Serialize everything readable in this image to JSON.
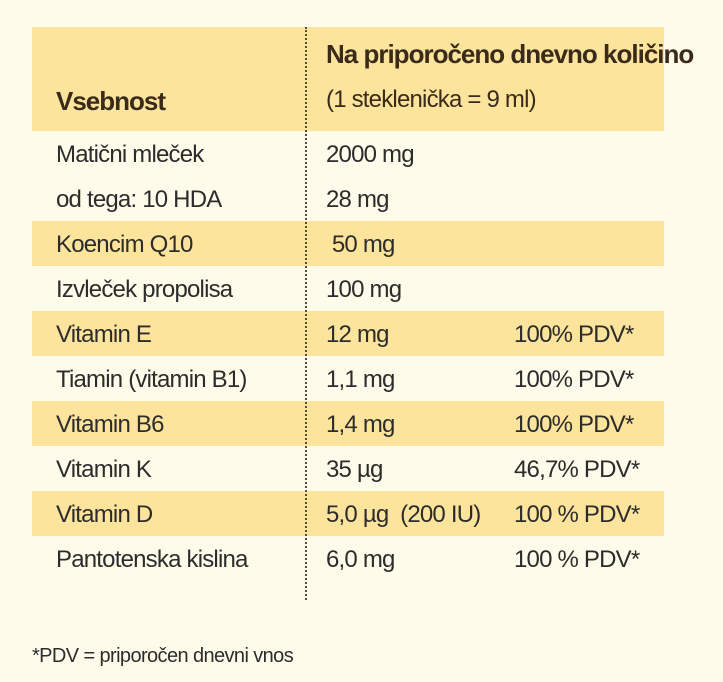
{
  "header": {
    "col1": "Vsebnost",
    "col2_title": "Na priporočeno dnevno količino",
    "col2_subtitle": "(1 steklenička = 9 ml)"
  },
  "rows": [
    {
      "name": "Matični mleček",
      "amount": "2000 mg",
      "pdv": ""
    },
    {
      "name": "od tega: 10 HDA",
      "amount": "28 mg",
      "pdv": ""
    },
    {
      "name": "Koencim Q10",
      "amount": " 50 mg",
      "pdv": ""
    },
    {
      "name": "Izvleček propolisa",
      "amount": "100 mg",
      "pdv": ""
    },
    {
      "name": "Vitamin E",
      "amount": "12 mg",
      "pdv": "100% PDV*"
    },
    {
      "name": "Tiamin (vitamin B1)",
      "amount": "1,1 mg",
      "pdv": "100% PDV*"
    },
    {
      "name": "Vitamin B6",
      "amount": "1,4 mg",
      "pdv": "100% PDV*"
    },
    {
      "name": "Vitamin K",
      "amount": "35 µg",
      "pdv": "46,7% PDV*"
    },
    {
      "name": "Vitamin D",
      "amount": "5,0 µg  (200 IU)",
      "pdv": "100 % PDV*"
    },
    {
      "name": "Pantotenska kislina",
      "amount": "6,0 mg",
      "pdv": "100 % PDV*"
    }
  ],
  "footnote": "*PDV = priporočen dnevni vnos",
  "colors": {
    "band": "#fde49c",
    "background": "#fffbea",
    "text": "#2c2c2c"
  }
}
